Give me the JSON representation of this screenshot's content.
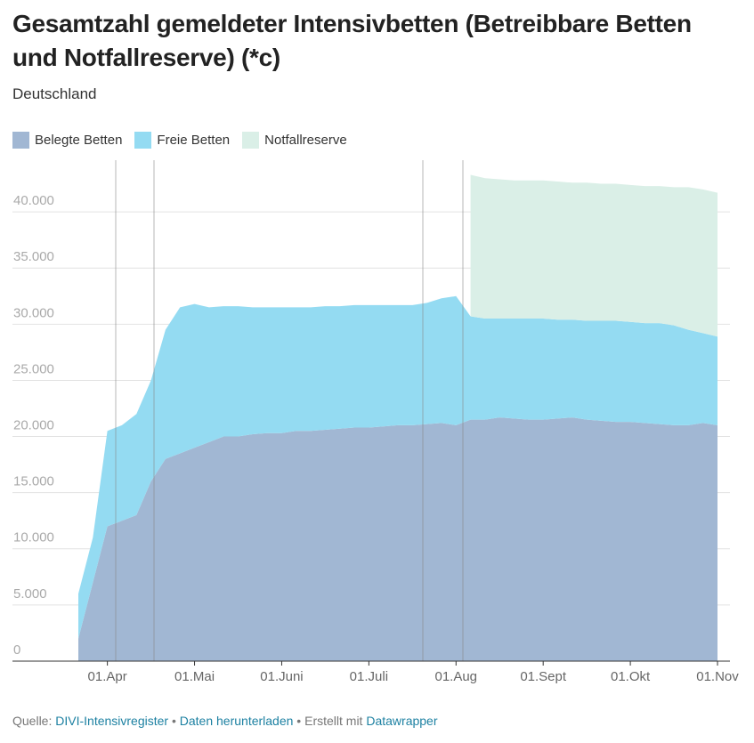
{
  "chart_data": {
    "type": "stacked_area",
    "title": "Gesamtzahl gemeldeter Intensivbetten (Betreibbare Betten und Notfallreserve) (*c)",
    "subtitle": "Deutschland",
    "categories": [
      null,
      null,
      "01.Apr",
      null,
      null,
      null,
      null,
      null,
      "01.Mai",
      null,
      null,
      null,
      null,
      null,
      "01.Juni",
      null,
      null,
      null,
      null,
      null,
      "01.Juli",
      null,
      null,
      null,
      null,
      null,
      "01.Aug",
      null,
      null,
      null,
      null,
      null,
      "01.Sept",
      null,
      null,
      null,
      null,
      null,
      "01.Okt",
      null,
      null,
      null,
      null,
      null,
      "01.Nov"
    ],
    "series": [
      {
        "name": "Belegte Betten",
        "color": "#a1b7d3",
        "values": [
          2000,
          7000,
          12000,
          12500,
          13000,
          16000,
          18000,
          18500,
          19000,
          19500,
          20000,
          20000,
          20200,
          20300,
          20300,
          20500,
          20500,
          20600,
          20700,
          20800,
          20800,
          20900,
          21000,
          21000,
          21100,
          21200,
          21000,
          21500,
          21500,
          21700,
          21600,
          21500,
          21500,
          21600,
          21700,
          21500,
          21400,
          21300,
          21300,
          21200,
          21100,
          21000,
          21000,
          21200,
          21000
        ]
      },
      {
        "name": "Freie Betten",
        "color": "#94dbf2",
        "values": [
          4000,
          4000,
          8500,
          8500,
          9000,
          9000,
          11500,
          13000,
          12800,
          12000,
          11600,
          11600,
          11300,
          11200,
          11200,
          11000,
          11000,
          11000,
          10900,
          10900,
          10900,
          10800,
          10700,
          10700,
          10800,
          11100,
          11500,
          9200,
          9000,
          8800,
          8900,
          9000,
          9000,
          8800,
          8700,
          8800,
          8900,
          9000,
          8900,
          8900,
          9000,
          8900,
          8500,
          8000,
          7900
        ]
      },
      {
        "name": "Notfallreserve",
        "color": "#daefe7",
        "values": [
          null,
          null,
          null,
          null,
          null,
          null,
          null,
          null,
          null,
          null,
          null,
          null,
          null,
          null,
          null,
          null,
          null,
          null,
          null,
          null,
          null,
          null,
          null,
          null,
          null,
          null,
          null,
          12600,
          12500,
          12400,
          12300,
          12300,
          12300,
          12300,
          12200,
          12300,
          12200,
          12200,
          12200,
          12200,
          12200,
          12300,
          12700,
          12800,
          12800
        ]
      }
    ],
    "ylim": [
      0,
      45000
    ],
    "yticks": [
      0,
      {
        "value": 5000,
        "label": "5.000"
      },
      {
        "value": 10000,
        "label": "10.000"
      },
      {
        "value": 15000,
        "label": "15.000"
      },
      {
        "value": 20000,
        "label": "20.000"
      },
      {
        "value": 25000,
        "label": "25.000"
      },
      {
        "value": 30000,
        "label": "30.000"
      },
      {
        "value": 35000,
        "label": "35.000"
      },
      {
        "value": 40000,
        "label": "40.000"
      }
    ],
    "grid": true
  },
  "footer": {
    "source_label": "Quelle:",
    "source_link": "DIVI-Intensivregister",
    "download_link": "Daten herunterladen",
    "created_label": "Erstellt mit",
    "tool_link": "Datawrapper"
  }
}
